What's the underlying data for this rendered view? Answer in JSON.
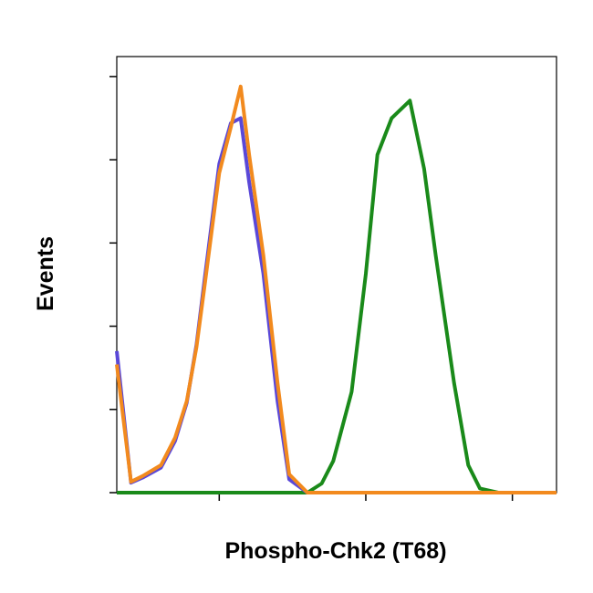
{
  "chart_data": {
    "type": "line",
    "xlabel": "Phospho-Chk2 (T68)",
    "ylabel": "Events",
    "x": [
      0.2,
      0.25,
      0.3,
      0.4,
      0.5,
      0.6,
      0.7,
      0.8,
      1,
      1.2,
      1.4,
      1.6,
      2,
      2.5,
      3,
      4,
      5,
      6,
      8,
      10,
      12,
      15,
      20,
      25,
      30,
      40,
      50,
      60,
      80,
      100,
      150,
      200
    ],
    "series": [
      {
        "color": "#1a8a1a",
        "values": [
          0,
          0,
          0,
          0,
          0,
          0,
          0,
          0,
          0,
          0,
          0,
          0,
          0,
          0,
          0,
          0,
          0.11,
          0.38,
          1.21,
          2.63,
          4.06,
          4.5,
          4.71,
          3.89,
          2.85,
          1.32,
          0.33,
          0.05,
          0,
          0,
          0,
          0
        ]
      },
      {
        "color": "#5a48d8",
        "values": [
          1.7,
          0.12,
          0.18,
          0.3,
          0.62,
          1.08,
          1.78,
          2.6,
          3.95,
          4.44,
          4.5,
          3.73,
          2.63,
          1.1,
          0.16,
          0,
          0,
          0,
          0,
          0,
          0,
          0,
          0,
          0,
          0,
          0,
          0,
          0,
          0,
          0,
          0,
          0
        ]
      },
      {
        "color": "#f28a1e",
        "values": [
          1.54,
          0.13,
          0.2,
          0.33,
          0.66,
          1.1,
          1.75,
          2.52,
          3.84,
          4.39,
          4.88,
          4.06,
          2.85,
          1.32,
          0.22,
          0,
          0,
          0,
          0,
          0,
          0,
          0,
          0,
          0,
          0,
          0,
          0,
          0,
          0,
          0,
          0,
          0
        ]
      }
    ],
    "xscale": "log",
    "xlim": [
      0.2,
      200
    ],
    "xticks": [
      1,
      10,
      100
    ],
    "ylim": [
      0,
      5.24
    ],
    "yticks": [
      0,
      1,
      2,
      3,
      4,
      5
    ],
    "tick_labels": false,
    "grid": false
  }
}
